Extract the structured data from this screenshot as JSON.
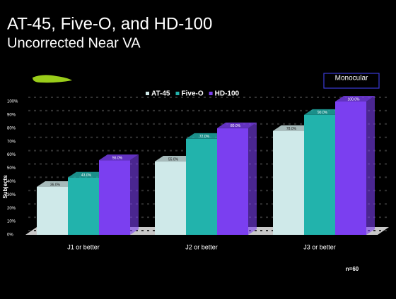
{
  "chart_data": {
    "type": "bar",
    "title": "AT-45, Five-O, and HD-100",
    "subtitle": "Uncorrected Near VA",
    "annotation": "Monocular",
    "note": "n=60",
    "y_label": "Subjects",
    "categories": [
      "J1 or better",
      "J2 or better",
      "J3 or better"
    ],
    "series": [
      {
        "name": "AT-45",
        "color": "#cfe9e9",
        "values": [
          36,
          55,
          78
        ],
        "value_labels": [
          "36.0%",
          "55.0%",
          "78.0%"
        ]
      },
      {
        "name": "Five-O",
        "color": "#22b3ac",
        "values": [
          43,
          72,
          90
        ],
        "value_labels": [
          "43.0%",
          "72.0%",
          "90.0%"
        ]
      },
      {
        "name": "HD-100",
        "color": "#7b3ff0",
        "values": [
          56,
          80,
          100
        ],
        "value_labels": [
          "56.0%",
          "80.0%",
          "100.0%"
        ]
      }
    ],
    "ylim": [
      0,
      100
    ],
    "yticks": [
      {
        "value": 0,
        "label": "0%"
      },
      {
        "value": 10,
        "label": "10%"
      },
      {
        "value": 20,
        "label": "20%"
      },
      {
        "value": 30,
        "label": "30%"
      },
      {
        "value": 40,
        "label": "40%"
      },
      {
        "value": 50,
        "label": "50%"
      },
      {
        "value": 60,
        "label": "60%"
      },
      {
        "value": 70,
        "label": "70%"
      },
      {
        "value": 80,
        "label": "80%"
      },
      {
        "value": 90,
        "label": "90%"
      },
      {
        "value": 100,
        "label": "100%"
      }
    ],
    "grid": true
  }
}
